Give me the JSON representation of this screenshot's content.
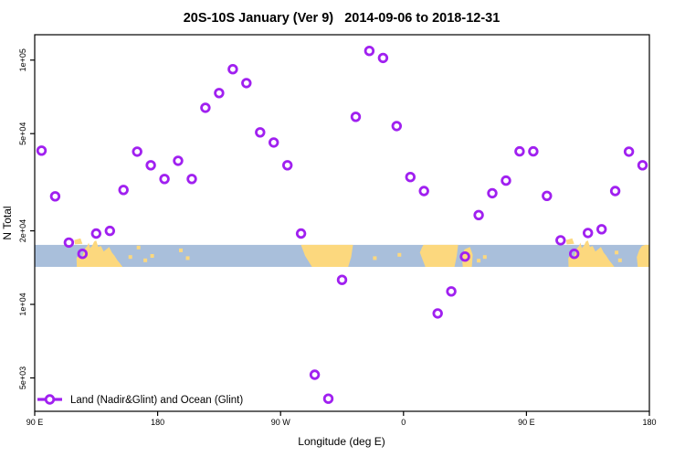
{
  "title": "20S-10S January (Ver 9)   2014-09-06 to 2018-12-31",
  "colors": {
    "marker": "#A020F0",
    "ocean": "#A9BFDB",
    "land": "#FCD87E",
    "axis": "#000000",
    "background": "#FFFFFF"
  },
  "chart_data": {
    "type": "scatter",
    "title": "20S-10S January (Ver 9)   2014-09-06 to 2018-12-31",
    "xlabel": "Longitude (deg E)",
    "ylabel": "N Total",
    "legend_position": "bottom-left-inside",
    "grid": false,
    "x_axis": {
      "range_deg": [
        90,
        540
      ],
      "note": "longitude increases eastward and wraps: 90E..180..90W..0..90E..180",
      "ticks": [
        {
          "pos": 90,
          "label": "90 E"
        },
        {
          "pos": 180,
          "label": "180"
        },
        {
          "pos": 270,
          "label": "90 W"
        },
        {
          "pos": 360,
          "label": "0"
        },
        {
          "pos": 450,
          "label": "90 E"
        },
        {
          "pos": 540,
          "label": "180"
        }
      ]
    },
    "y_axis": {
      "scale": "log",
      "range": [
        3650,
        127000
      ],
      "ticks": [
        {
          "value": 5000,
          "label": "5e+03"
        },
        {
          "value": 10000,
          "label": "1e+04"
        },
        {
          "value": 20000,
          "label": "2e+04"
        },
        {
          "value": 50000,
          "label": "5e+04"
        },
        {
          "value": 100000,
          "label": "1e+05"
        }
      ]
    },
    "series": [
      {
        "name": "Land (Nadir&Glint) and Ocean (Glint)",
        "marker": "open-circle",
        "color": "#A020F0",
        "points": [
          [
            95,
            42600
          ],
          [
            105,
            27700
          ],
          [
            115,
            17900
          ],
          [
            125,
            16100
          ],
          [
            135,
            19500
          ],
          [
            145,
            20000
          ],
          [
            155,
            29400
          ],
          [
            165,
            42200
          ],
          [
            175,
            37100
          ],
          [
            185,
            32600
          ],
          [
            195,
            38700
          ],
          [
            205,
            32600
          ],
          [
            215,
            63800
          ],
          [
            225,
            73300
          ],
          [
            235,
            91800
          ],
          [
            245,
            80500
          ],
          [
            255,
            50600
          ],
          [
            265,
            46000
          ],
          [
            275,
            37100
          ],
          [
            285,
            19500
          ],
          [
            295,
            5150
          ],
          [
            305,
            4110
          ],
          [
            315,
            12600
          ],
          [
            325,
            58600
          ],
          [
            335,
            109000
          ],
          [
            345,
            102000
          ],
          [
            355,
            53700
          ],
          [
            365,
            33200
          ],
          [
            375,
            29100
          ],
          [
            385,
            9180
          ],
          [
            395,
            11300
          ],
          [
            405,
            15700
          ],
          [
            415,
            23200
          ],
          [
            425,
            28500
          ],
          [
            435,
            32100
          ],
          [
            445,
            42300
          ],
          [
            455,
            42300
          ],
          [
            465,
            27800
          ],
          [
            475,
            18300
          ],
          [
            485,
            16100
          ],
          [
            495,
            19600
          ],
          [
            505,
            20300
          ],
          [
            515,
            29100
          ],
          [
            525,
            42200
          ],
          [
            535,
            37100
          ]
        ]
      }
    ],
    "map_band": {
      "description": "coastline strip for latitude band 20S-10S drawn across the plot",
      "value_range": [
        14240,
        17520
      ],
      "ocean_color": "#A9BFDB",
      "land_color": "#FCD87E",
      "land_polygons": [
        {
          "name": "australia",
          "pts": [
            [
              120.8,
              1
            ],
            [
              120.6,
              0.6
            ],
            [
              122.5,
              0.45
            ],
            [
              124.5,
              0.6
            ],
            [
              126.5,
              0.2
            ],
            [
              128.5,
              0.05
            ],
            [
              129.5,
              -0.1
            ],
            [
              130.5,
              0.15
            ],
            [
              132,
              0.05
            ],
            [
              133.5,
              -0.15
            ],
            [
              135,
              -0.2
            ],
            [
              136.5,
              0.1
            ],
            [
              138.5,
              0.05
            ],
            [
              140.5,
              0.3
            ],
            [
              142.5,
              0.2
            ],
            [
              144.5,
              0.1
            ],
            [
              146.5,
              0.35
            ],
            [
              148.5,
              0.5
            ],
            [
              150.5,
              0.7
            ],
            [
              152.5,
              0.85
            ],
            [
              154.3,
              1
            ]
          ]
        },
        {
          "name": "timor-islands",
          "pts": [
            [
              119.5,
              -0.02
            ],
            [
              119,
              -0.22
            ],
            [
              123.5,
              -0.3
            ],
            [
              125,
              -0.05
            ]
          ]
        },
        {
          "name": "south-america",
          "pts": [
            [
              284.9,
              0
            ],
            [
              323,
              0
            ],
            [
              321.7,
              0.55
            ],
            [
              319.5,
              1
            ],
            [
              293,
              1
            ],
            [
              288,
              0.5
            ]
          ]
        },
        {
          "name": "africa",
          "pts": [
            [
              374.6,
              0
            ],
            [
              400,
              0
            ],
            [
              399,
              0.5
            ],
            [
              397.3,
              1
            ],
            [
              376,
              1
            ],
            [
              372,
              0.35
            ],
            [
              373.5,
              0.12
            ]
          ]
        },
        {
          "name": "madagascar",
          "pts": [
            [
              403.4,
              1
            ],
            [
              402.8,
              0.5
            ],
            [
              404.7,
              0.2
            ],
            [
              408.7,
              0.1
            ],
            [
              410.7,
              0.45
            ],
            [
              410,
              1
            ]
          ]
        },
        {
          "name": "australia-repeat",
          "pts": [
            [
              480.8,
              1
            ],
            [
              480.6,
              0.6
            ],
            [
              482.5,
              0.45
            ],
            [
              484.5,
              0.6
            ],
            [
              486.5,
              0.2
            ],
            [
              488.5,
              0.05
            ],
            [
              489.5,
              -0.1
            ],
            [
              490.5,
              0.15
            ],
            [
              492,
              0.05
            ],
            [
              493.5,
              -0.15
            ],
            [
              495,
              -0.2
            ],
            [
              496.5,
              0.1
            ],
            [
              498.5,
              0.05
            ],
            [
              500.5,
              0.3
            ],
            [
              502.5,
              0.2
            ],
            [
              504.5,
              0.1
            ],
            [
              506.5,
              0.35
            ],
            [
              508.5,
              0.5
            ],
            [
              510.5,
              0.7
            ],
            [
              512.5,
              0.85
            ],
            [
              514.3,
              1
            ]
          ]
        },
        {
          "name": "timor-islands-repeat",
          "pts": [
            [
              479.5,
              -0.02
            ],
            [
              479,
              -0.22
            ],
            [
              483.5,
              -0.3
            ],
            [
              485,
              -0.05
            ]
          ]
        },
        {
          "name": "melanesia-repeat",
          "pts": [
            [
              531.5,
              1
            ],
            [
              530.8,
              0.55
            ],
            [
              532.5,
              0.25
            ],
            [
              534.5,
              0.05
            ],
            [
              537,
              0
            ],
            [
              540,
              0
            ],
            [
              540,
              1
            ]
          ]
        }
      ],
      "land_specks": [
        [
          160,
          0.55
        ],
        [
          166,
          0.12
        ],
        [
          171,
          0.7
        ],
        [
          176,
          0.5
        ],
        [
          197,
          0.25
        ],
        [
          202,
          0.6
        ],
        [
          339,
          0.6
        ],
        [
          357,
          0.45
        ],
        [
          415,
          0.72
        ],
        [
          419.5,
          0.55
        ],
        [
          516,
          0.35
        ],
        [
          518.5,
          0.7
        ]
      ]
    }
  }
}
